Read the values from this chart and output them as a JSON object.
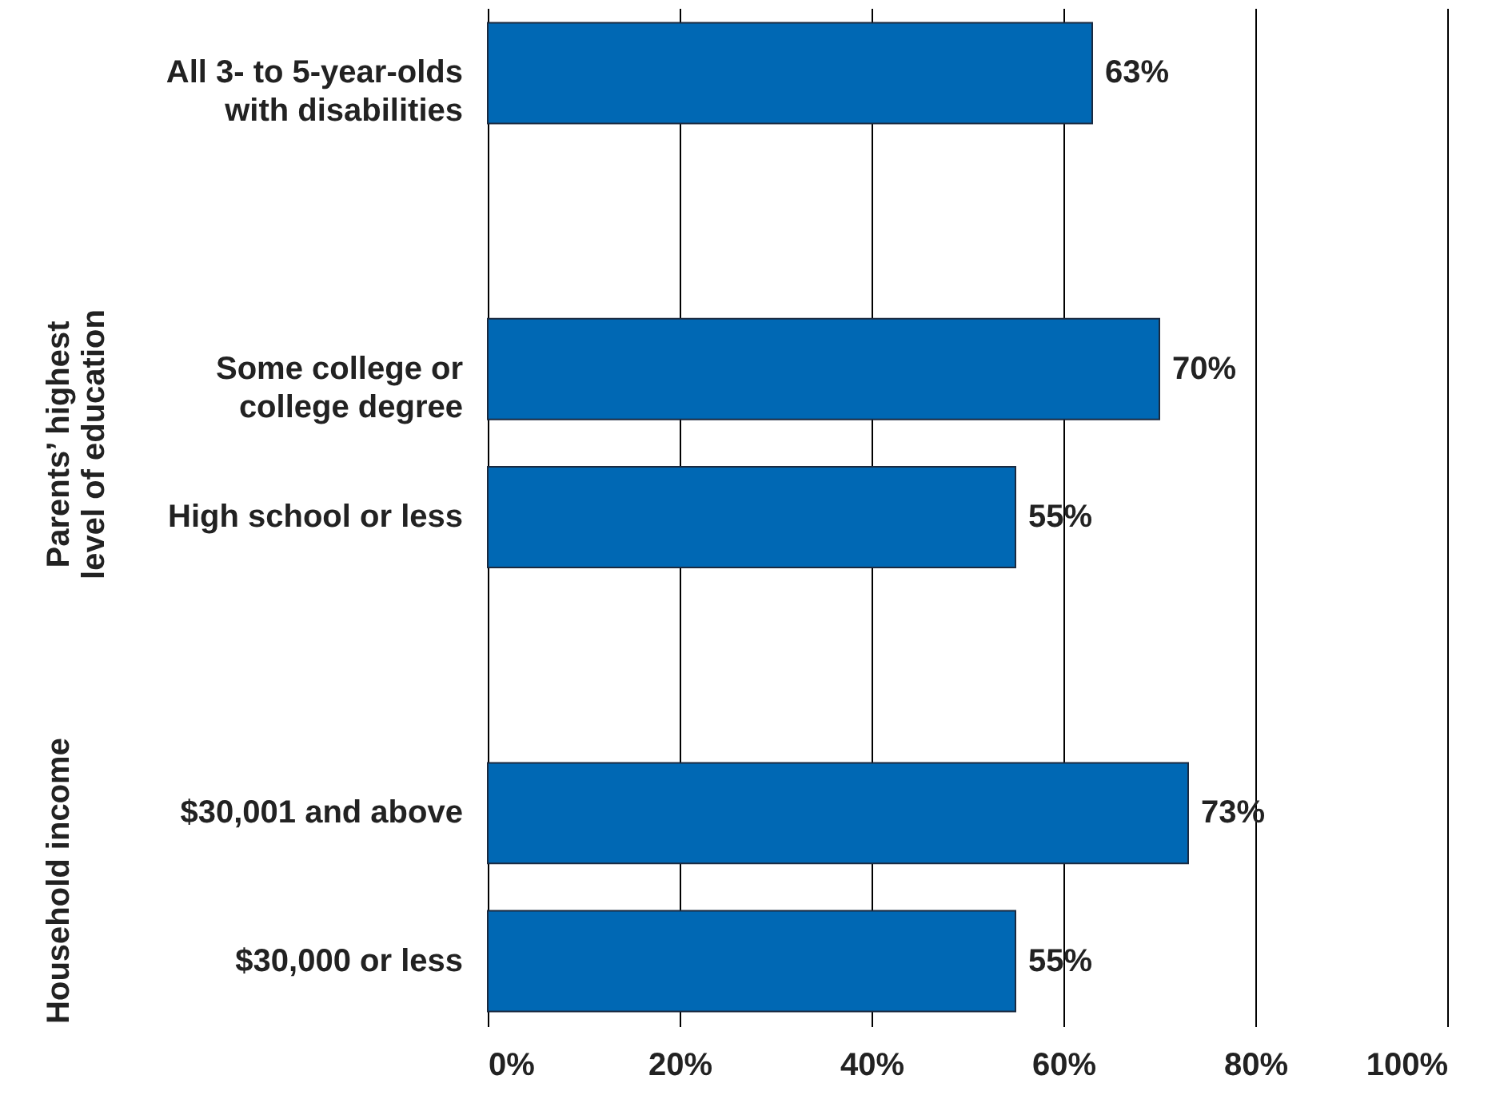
{
  "chart_data": {
    "type": "bar",
    "orientation": "horizontal",
    "categories": [
      "All 3- to 5-year-olds with disabilities",
      null,
      "Some college or college degree",
      "High school or less",
      null,
      "$30,001 and above",
      "$30,000 or less"
    ],
    "values": [
      63,
      null,
      70,
      55,
      null,
      73,
      55
    ],
    "value_labels": [
      "63%",
      null,
      "70%",
      "55%",
      null,
      "73%",
      "55%"
    ],
    "color": "#0068b4",
    "xlim": [
      0,
      100
    ],
    "xticks": [
      {
        "value": 0,
        "label": "0%"
      },
      {
        "value": 20,
        "label": "20%"
      },
      {
        "value": 40,
        "label": "40%"
      },
      {
        "value": 60,
        "label": "60%"
      },
      {
        "value": 80,
        "label": "80%"
      },
      {
        "value": 100,
        "label": "100%"
      }
    ],
    "grid": "x",
    "annotations": [
      "Parents’ highest level of education",
      "Household income"
    ]
  }
}
